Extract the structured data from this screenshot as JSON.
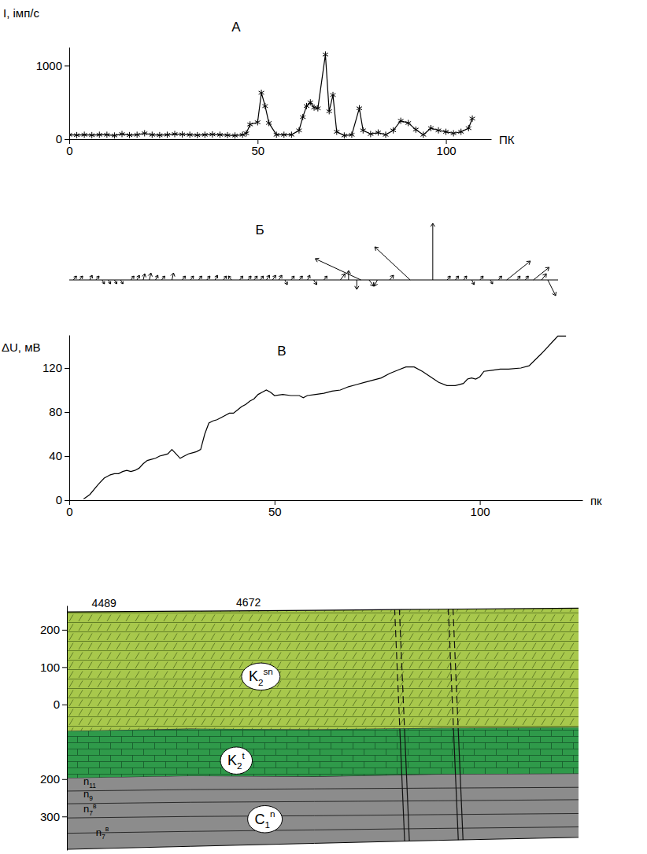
{
  "chart_data": [
    {
      "type": "line",
      "title": "А",
      "x_label": "ПК",
      "y_label": "I, імп/с",
      "x": [
        0,
        2,
        4,
        6,
        8,
        10,
        12,
        14,
        16,
        18,
        20,
        22,
        24,
        26,
        28,
        30,
        32,
        34,
        36,
        38,
        40,
        42,
        44,
        46,
        47,
        48,
        50,
        51,
        52,
        53,
        55,
        57,
        59,
        61,
        62,
        63,
        64,
        65,
        66,
        68,
        69,
        70,
        71,
        73,
        75,
        77,
        78,
        80,
        82,
        84,
        86,
        88,
        90,
        92,
        94,
        96,
        98,
        100,
        102,
        104,
        106,
        107
      ],
      "series": [
        {
          "marker": "asterisk",
          "values": [
            60,
            55,
            60,
            55,
            60,
            60,
            50,
            70,
            55,
            60,
            80,
            60,
            55,
            60,
            70,
            65,
            60,
            55,
            60,
            65,
            60,
            55,
            50,
            60,
            80,
            200,
            230,
            630,
            450,
            220,
            60,
            60,
            60,
            120,
            300,
            450,
            500,
            430,
            420,
            1150,
            380,
            600,
            100,
            50,
            60,
            420,
            120,
            70,
            90,
            60,
            120,
            250,
            220,
            130,
            60,
            150,
            120,
            100,
            80,
            100,
            150,
            280
          ]
        }
      ],
      "xlim": [
        0,
        112
      ],
      "ylim": [
        0,
        1250
      ],
      "xticks": [
        0,
        50,
        100
      ],
      "yticks": [
        0,
        1000
      ]
    },
    {
      "type": "vector",
      "title": "Б",
      "tick_labels": false,
      "xlim": [
        0,
        119
      ],
      "x": [
        1,
        2.5,
        5,
        6.5,
        8,
        9.5,
        11,
        12.5,
        15,
        16.5,
        18,
        19.5,
        21,
        22.5,
        25,
        27.5,
        29.5,
        31.5,
        33.5,
        35.5,
        37.5,
        39.5,
        41.5,
        43.5,
        45,
        46.5,
        48,
        49.5,
        51,
        52.5,
        54,
        56,
        58,
        59.5,
        62,
        66,
        68,
        70,
        71,
        73,
        75,
        78,
        83,
        88.5,
        92,
        94,
        96,
        98,
        100,
        102.5,
        104.5,
        106.5,
        109,
        111,
        113,
        115,
        116.5
      ],
      "u": [
        4,
        4,
        3,
        4,
        3,
        3,
        3,
        3,
        4,
        3,
        2,
        2,
        3,
        4,
        2,
        4,
        4,
        4,
        4,
        3,
        4,
        -4,
        4,
        4,
        4,
        4,
        4,
        4,
        4,
        3,
        4,
        4,
        3,
        4,
        4,
        6,
        0,
        0,
        -58,
        6,
        -4,
        5,
        -45,
        0,
        4,
        4,
        4,
        3,
        4,
        3,
        4,
        30,
        4,
        4,
        20,
        6,
        10
      ],
      "v": [
        5,
        5,
        6,
        5,
        -5,
        -5,
        -5,
        -5,
        5,
        6,
        8,
        9,
        6,
        5,
        9,
        5,
        5,
        5,
        5,
        6,
        5,
        5,
        5,
        5,
        5,
        5,
        6,
        6,
        6,
        -6,
        5,
        5,
        6,
        -6,
        5,
        8,
        12,
        -12,
        27,
        -8,
        -8,
        6,
        42,
        72,
        5,
        5,
        5,
        -6,
        5,
        -5,
        5,
        24,
        5,
        5,
        16,
        8,
        -20
      ]
    },
    {
      "type": "line",
      "title": "В",
      "x_label": "пк",
      "y_label": "ΔU, мВ",
      "x": [
        3.5,
        5,
        7,
        8.5,
        10,
        11,
        12,
        13,
        14,
        15,
        16,
        17,
        18,
        19,
        20,
        21,
        22,
        23,
        24,
        25,
        26,
        27,
        28,
        29,
        30,
        31,
        32,
        33,
        34,
        35,
        36,
        37,
        38,
        39,
        40,
        41,
        42,
        43,
        44,
        45,
        46,
        47,
        48,
        49,
        50,
        52,
        54,
        56,
        57,
        58,
        60,
        62,
        64,
        66,
        68,
        70,
        72,
        74,
        76,
        78,
        80,
        82,
        84,
        86,
        88,
        90,
        92,
        94,
        96,
        97,
        98,
        99,
        100,
        101,
        103,
        105,
        107,
        110,
        112,
        115,
        118,
        119,
        121
      ],
      "series": [
        {
          "values": [
            1,
            5,
            14,
            20,
            23,
            24,
            24,
            26,
            27,
            26,
            27,
            29,
            33,
            36,
            37,
            38,
            40,
            41,
            42,
            46,
            42,
            38,
            40,
            42,
            43,
            44,
            46,
            60,
            70,
            72,
            73,
            75,
            77,
            79,
            79,
            82,
            85,
            87,
            90,
            92,
            96,
            98,
            100,
            98,
            95,
            96,
            95,
            95,
            93,
            95,
            96,
            97,
            99,
            100,
            103,
            105,
            107,
            109,
            111,
            115,
            118,
            121,
            121,
            117,
            112,
            107,
            104,
            104,
            106,
            110,
            111,
            110,
            112,
            117,
            118,
            119,
            119,
            120,
            122,
            133,
            145,
            149,
            149
          ]
        }
      ],
      "xlim": [
        0,
        125
      ],
      "ylim": [
        0,
        150
      ],
      "xticks": [
        0,
        50,
        100
      ],
      "yticks": [
        0,
        40,
        80,
        120
      ]
    }
  ],
  "section": {
    "xlim": [
      0,
      124
    ],
    "ylim": [
      -390,
      265
    ],
    "yticks": [
      200,
      100,
      0,
      {
        "value": -200,
        "label": "200"
      },
      {
        "value": -300,
        "label": "300"
      }
    ],
    "wells": [
      {
        "label": "4489",
        "x": 9
      },
      {
        "label": "4672",
        "x": 44
      }
    ],
    "x": [
      0,
      30,
      60,
      90,
      124
    ],
    "top": [
      248,
      250,
      252,
      255,
      258
    ],
    "bottom": [
      -388,
      -380,
      -372,
      -364,
      -356
    ],
    "layers": [
      {
        "label": {
          "base": "K",
          "sub": "2",
          "sup": "sn"
        },
        "color": "#a8c84c",
        "base": [
          -72,
          -66,
          -68,
          -64,
          -62
        ],
        "label_x": 47,
        "label_y": 75
      },
      {
        "label": {
          "base": "K",
          "sub": "2",
          "sup": "t"
        },
        "color": "#2f9a4a",
        "base": [
          -198,
          -192,
          -194,
          -188,
          -186
        ],
        "label_x": 41,
        "label_y": -150
      },
      {
        "label": {
          "base": "C",
          "sub": "1",
          "sup": "n"
        },
        "color": "#8c8c8c",
        "label_x": 48,
        "label_y": -307
      }
    ],
    "horizons": [
      {
        "label": {
          "base": "n",
          "sub": "11"
        },
        "values": [
          -232,
          -228,
          -226,
          -224,
          -222
        ],
        "label_x": 4,
        "label_y": -222
      },
      {
        "label": {
          "base": "n",
          "sub": "9"
        },
        "values": [
          -266,
          -262,
          -260,
          -258,
          -255
        ],
        "label_x": 4,
        "label_y": -256
      },
      {
        "label": {
          "base": "n",
          "sub": "7",
          "sup": "в"
        },
        "values": [
          -304,
          -300,
          -298,
          -295,
          -292
        ],
        "label_x": 4,
        "label_y": -296
      },
      {
        "label": {
          "base": "n",
          "sub": "7",
          "sup": "в"
        },
        "values": [
          -345,
          -340,
          -336,
          -332,
          -328
        ],
        "label_x": 7,
        "label_y": -358
      }
    ],
    "faults": [
      {
        "x": [
          80,
          82.5
        ],
        "y": [
          258,
          -385
        ]
      },
      {
        "x": [
          93,
          95.5
        ],
        "y": [
          258,
          -380
        ]
      }
    ]
  }
}
